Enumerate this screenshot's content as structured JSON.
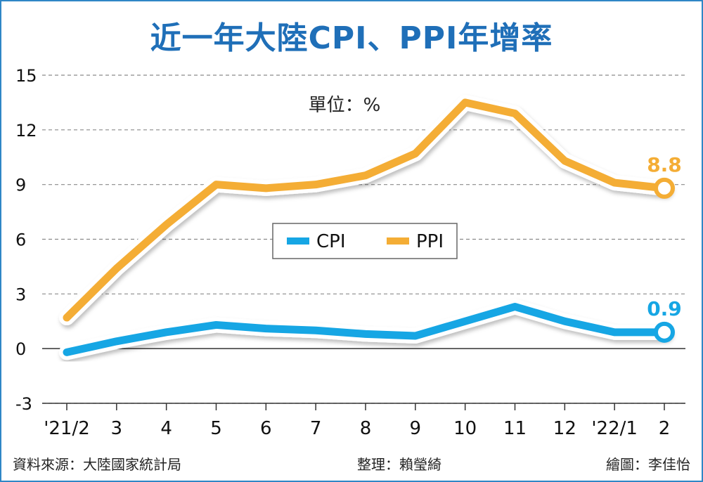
{
  "title": "近一年大陸CPI、PPI年增率",
  "chart_data": {
    "type": "line",
    "title": "近一年大陸CPI、PPI年增率",
    "unit_label": "單位：%",
    "categories": [
      "'21/2",
      "3",
      "4",
      "5",
      "6",
      "7",
      "8",
      "9",
      "10",
      "11",
      "12",
      "'22/1",
      "2"
    ],
    "series": [
      {
        "name": "CPI",
        "color": "#16a6e4",
        "values": [
          -0.2,
          0.4,
          0.9,
          1.3,
          1.1,
          1.0,
          0.8,
          0.7,
          1.5,
          2.3,
          1.5,
          0.9,
          0.9
        ],
        "end_label": "0.9"
      },
      {
        "name": "PPI",
        "color": "#f4ad35",
        "values": [
          1.7,
          4.4,
          6.8,
          9.0,
          8.8,
          9.0,
          9.5,
          10.7,
          13.5,
          12.9,
          10.3,
          9.1,
          8.8
        ],
        "end_label": "8.8"
      }
    ],
    "yticks": [
      -3,
      0,
      3,
      6,
      9,
      12,
      15
    ],
    "ylim": [
      -3,
      15
    ],
    "grid": true,
    "legend_position": "center"
  },
  "footer": {
    "source": "資料來源：大陸國家統計局",
    "editor": "整理：賴瑩綺",
    "illustrator": "繪圖：李佳怡"
  }
}
